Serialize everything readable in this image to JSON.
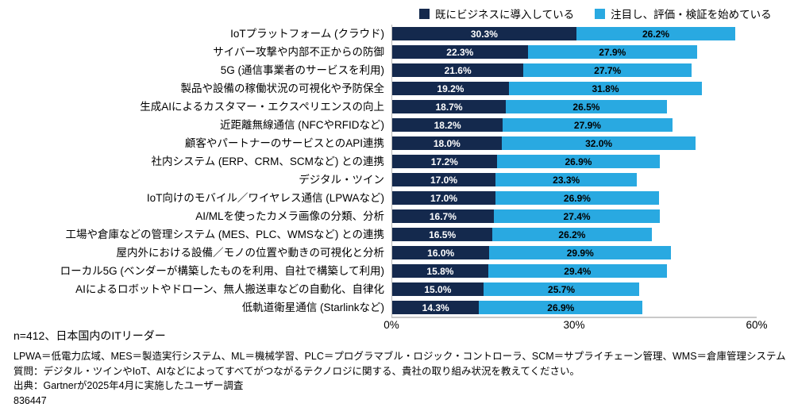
{
  "legend": [
    {
      "label": "既にビジネスに導入している",
      "color": "#14294D"
    },
    {
      "label": "注目し、評価・検証を始めている",
      "color": "#29A9E1"
    }
  ],
  "chart_data": {
    "type": "bar",
    "orientation": "horizontal",
    "stacked": true,
    "grid": false,
    "legend_position": "top",
    "xlim": [
      0,
      60
    ],
    "xticks": [
      "0%",
      "30%",
      "60%"
    ],
    "categories": [
      "IoTプラットフォーム (クラウド)",
      "サイバー攻撃や内部不正からの防御",
      "5G (通信事業者のサービスを利用)",
      "製品や設備の稼働状況の可視化や予防保全",
      "生成AIによるカスタマー・エクスペリエンスの向上",
      "近距離無線通信 (NFCやRFIDなど)",
      "顧客やパートナーのサービスとのAPI連携",
      "社内システム (ERP、CRM、SCMなど) との連携",
      "デジタル・ツイン",
      "IoT向けのモバイル／ワイヤレス通信 (LPWAなど)",
      "AI/MLを使ったカメラ画像の分類、分析",
      "工場や倉庫などの管理システム (MES、PLC、WMSなど) との連携",
      "屋内外における設備／モノの位置や動きの可視化と分析",
      "ローカル5G (ベンダーが構築したものを利用、自社で構築して利用)",
      "AIによるロボットやドローン、無人搬送車などの自動化、自律化",
      "低軌道衛星通信 (Starlinkなど)"
    ],
    "series": [
      {
        "name": "既にビジネスに導入している",
        "color": "#14294D",
        "values": [
          30.3,
          22.3,
          21.6,
          19.2,
          18.7,
          18.2,
          18.0,
          17.2,
          17.0,
          17.0,
          16.7,
          16.5,
          16.0,
          15.8,
          15.0,
          14.3
        ]
      },
      {
        "name": "注目し、評価・検証を始めている",
        "color": "#29A9E1",
        "values": [
          26.2,
          27.9,
          27.7,
          31.8,
          26.5,
          27.9,
          32.0,
          26.9,
          23.3,
          26.9,
          27.4,
          26.2,
          29.9,
          29.4,
          25.7,
          26.9
        ]
      }
    ]
  },
  "footnotes": {
    "sample": "n=412、日本国内のITリーダー",
    "abbreviations": "LPWA＝低電力広域、MES＝製造実行システム、ML＝機械学習、PLC＝プログラマブル・ロジック・コントローラ、SCM＝サプライチェーン管理、WMS＝倉庫管理システム",
    "question": "質問：デジタル・ツインやIoT、AIなどによってすべてがつながるテクノロジに関する、貴社の取り組み状況を教えてください。",
    "source": "出典：Gartnerが2025年4月に実施したユーザー調査",
    "doc_id": "836447"
  }
}
